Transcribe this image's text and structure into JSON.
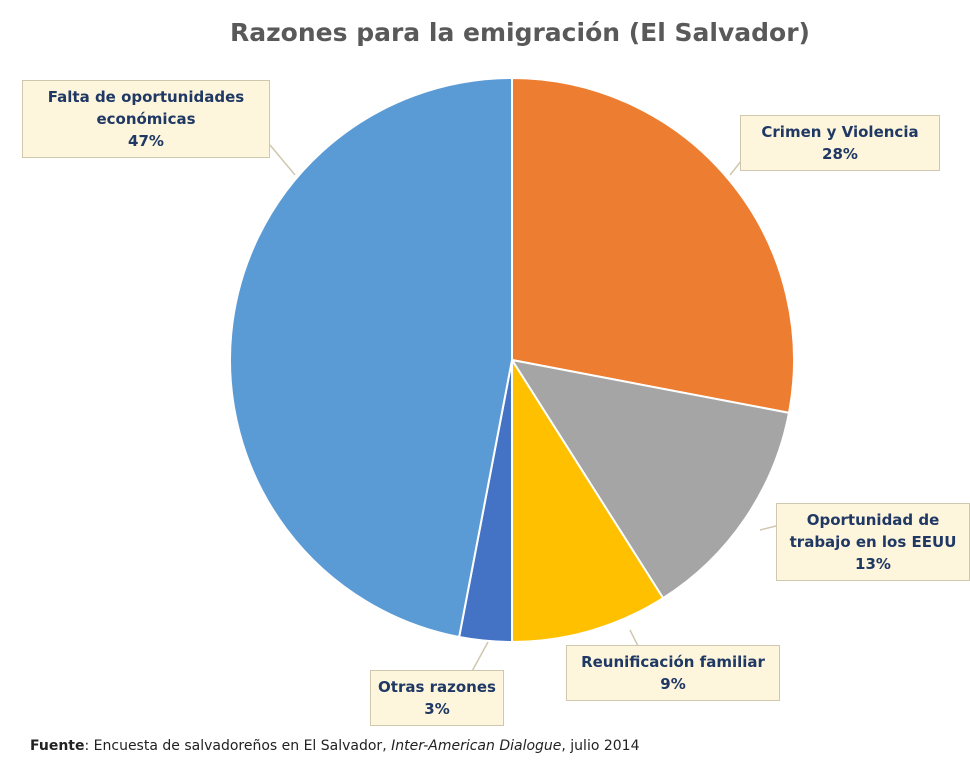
{
  "chart_data": {
    "type": "pie",
    "title": "Razones para la emigración (El Salvador)",
    "categories": [
      "Crimen y Violencia",
      "Oportunidad de trabajo en los EEUU",
      "Reunificación familiar",
      "Otras razones",
      "Falta de oportunidades económicas"
    ],
    "values": [
      28,
      13,
      9,
      3,
      47
    ],
    "value_labels": [
      "28%",
      "13%",
      "9%",
      "3%",
      "47%"
    ],
    "colors": [
      "#ed7d31",
      "#a5a5a5",
      "#ffc000",
      "#4472c4",
      "#5b9bd5"
    ],
    "source": [
      "Fuente",
      ": Encuesta de salvadoreños en El Salvador, ",
      "Inter-American Dialogue",
      ", julio 2014"
    ]
  }
}
